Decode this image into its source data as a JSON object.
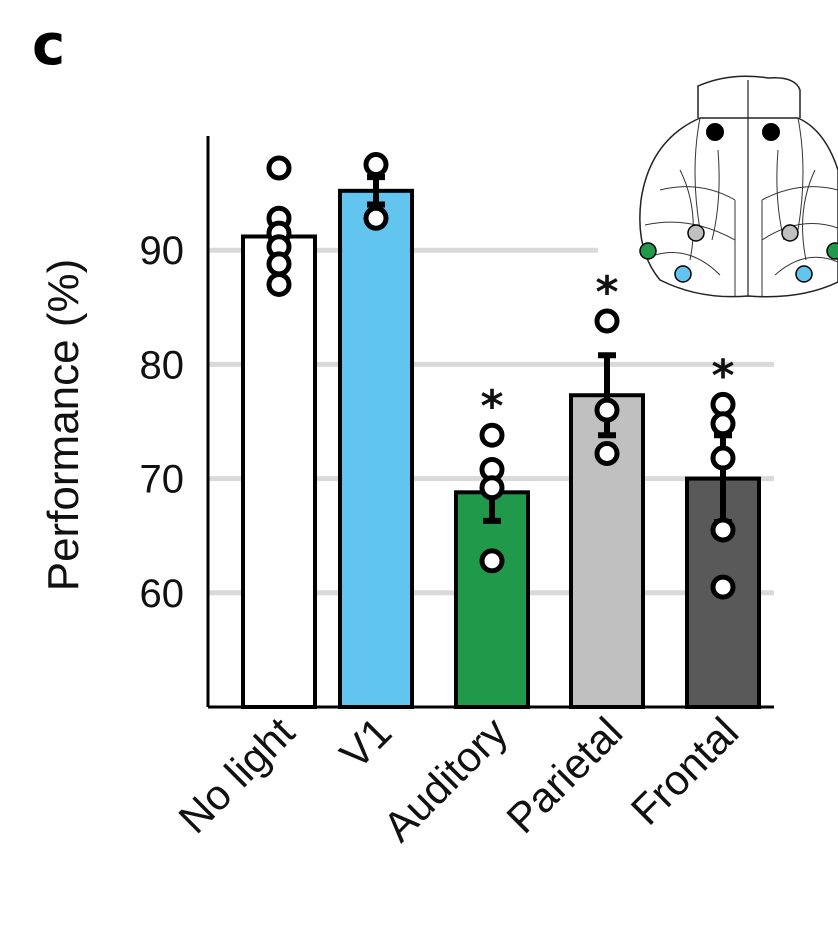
{
  "panel_label": "c",
  "colors": {
    "no_light": "#ffffff",
    "v1": "#62c5f0",
    "auditory": "#21994a",
    "parietal": "#c0c0c0",
    "frontal": "#595959",
    "grid": "#d9d9d9",
    "axis": "#000000"
  },
  "chart_data": {
    "type": "bar",
    "categories": [
      "No light",
      "V1",
      "Auditory",
      "Parietal",
      "Frontal"
    ],
    "values": [
      91.2,
      95.2,
      68.8,
      77.3,
      70.0
    ],
    "errors": [
      1.5,
      1.2,
      2.5,
      3.5,
      3.8
    ],
    "points": [
      [
        97.2,
        92.8,
        91.5,
        90.3,
        88.8,
        87.0
      ],
      [
        97.5,
        92.8
      ],
      [
        73.8,
        70.8,
        69.2,
        62.8
      ],
      [
        83.8,
        76.0,
        72.2
      ],
      [
        76.5,
        74.8,
        71.8,
        65.5,
        60.5
      ]
    ],
    "significant": [
      "",
      "",
      "*",
      "*",
      "*"
    ],
    "title": "",
    "xlabel": "",
    "ylabel": "Performance (%)",
    "yticks": [
      "60",
      "70",
      "80",
      "90"
    ],
    "ylim": [
      50,
      100
    ],
    "grid": "horizontal"
  },
  "inset": {
    "description_icon": "brain-top-view-icon",
    "markers": [
      "black",
      "grey",
      "green",
      "blue"
    ]
  }
}
